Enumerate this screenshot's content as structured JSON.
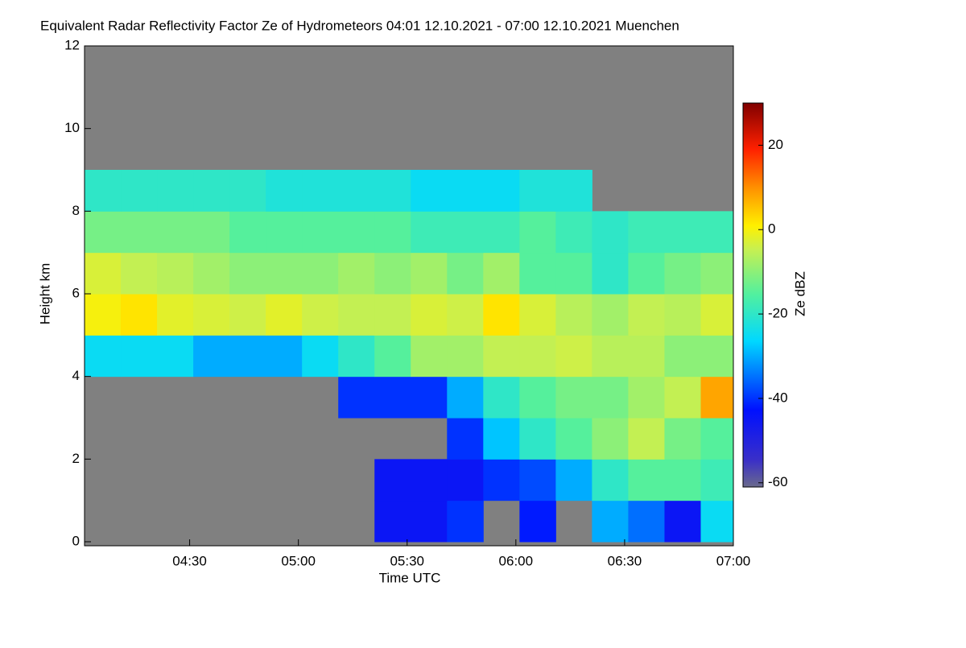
{
  "chart_data": {
    "type": "heatmap",
    "title": "Equivalent Radar Reflectivity Factor Ze of Hydrometeors   04:01 12.10.2021 - 07:00 12.10.2021 Muenchen",
    "x_label": "Time UTC",
    "y_label": "Height km",
    "colorbar_label": "Ze dBZ",
    "xlim": [
      "04:01",
      "07:00"
    ],
    "xticks": [
      "04:30",
      "05:00",
      "05:30",
      "06:00",
      "06:30",
      "07:00"
    ],
    "ylim": [
      0,
      12
    ],
    "yticks": [
      0,
      2,
      4,
      6,
      8,
      10,
      12
    ],
    "zlim": [
      -61,
      30
    ],
    "zticks": [
      -60,
      -40,
      -20,
      0,
      20
    ],
    "xbins": [
      "04:01",
      "04:11",
      "04:21",
      "04:31",
      "04:41",
      "04:51",
      "05:01",
      "05:11",
      "05:21",
      "05:31",
      "05:41",
      "05:51",
      "06:01",
      "06:11",
      "06:21",
      "06:31",
      "06:41",
      "06:51",
      "07:00"
    ],
    "ybins": [
      0,
      1,
      2,
      3,
      4,
      5,
      6,
      7,
      8,
      9
    ],
    "missing_color": "#808080",
    "values": [
      [
        null,
        null,
        null,
        null,
        null,
        null,
        null,
        null,
        -45,
        -45,
        -40,
        null,
        -42,
        null,
        -30,
        -35,
        -45,
        -25
      ],
      [
        null,
        null,
        null,
        null,
        null,
        null,
        null,
        null,
        -45,
        -45,
        -45,
        -40,
        -38,
        -30,
        -20,
        -15,
        -15,
        -18
      ],
      [
        null,
        null,
        null,
        null,
        null,
        null,
        null,
        null,
        null,
        null,
        -40,
        -28,
        -20,
        -15,
        -10,
        -5,
        -12,
        -15
      ],
      [
        null,
        null,
        null,
        null,
        null,
        null,
        null,
        -40,
        -40,
        -40,
        -30,
        -20,
        -15,
        -12,
        -12,
        -8,
        -5,
        8
      ],
      [
        -25,
        -25,
        -25,
        -30,
        -30,
        -30,
        -25,
        -20,
        -15,
        -8,
        -8,
        -5,
        -5,
        -4,
        -6,
        -6,
        -10,
        -10
      ],
      [
        0,
        2,
        -2,
        -3,
        -4,
        -2,
        -4,
        -5,
        -5,
        -3,
        -4,
        2,
        -3,
        -6,
        -8,
        -5,
        -6,
        -3
      ],
      [
        -3,
        -5,
        -6,
        -8,
        -10,
        -10,
        -10,
        -8,
        -10,
        -8,
        -12,
        -8,
        -15,
        -15,
        -20,
        -15,
        -12,
        -10
      ],
      [
        -12,
        -12,
        -12,
        -12,
        -15,
        -15,
        -15,
        -15,
        -15,
        -18,
        -18,
        -18,
        -15,
        -18,
        -20,
        -18,
        -18,
        -18
      ],
      [
        -20,
        -20,
        -20,
        -20,
        -20,
        -22,
        -22,
        -22,
        -22,
        -25,
        -25,
        -25,
        -22,
        -22,
        null,
        null,
        null,
        null
      ]
    ]
  }
}
